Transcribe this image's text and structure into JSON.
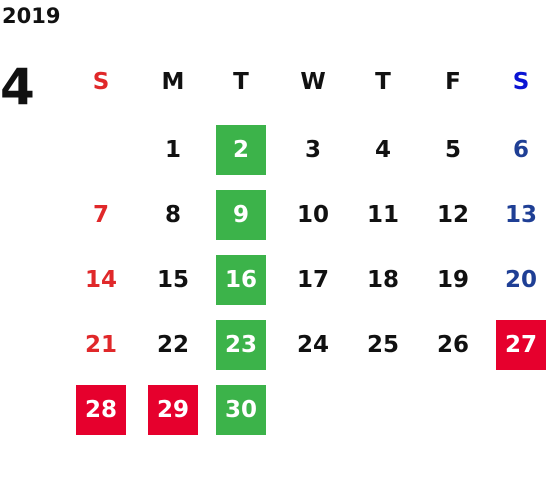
{
  "year": "2019",
  "month": "4",
  "weekdays": [
    "S",
    "M",
    "T",
    "W",
    "T",
    "F",
    "S"
  ],
  "weeks": [
    [
      null,
      "1",
      "2",
      "3",
      "4",
      "5",
      "6"
    ],
    [
      "7",
      "8",
      "9",
      "10",
      "11",
      "12",
      "13"
    ],
    [
      "14",
      "15",
      "16",
      "17",
      "18",
      "19",
      "20"
    ],
    [
      "21",
      "22",
      "23",
      "24",
      "25",
      "26",
      "27"
    ],
    [
      "28",
      "29",
      "30",
      null,
      null,
      null,
      null
    ]
  ]
}
